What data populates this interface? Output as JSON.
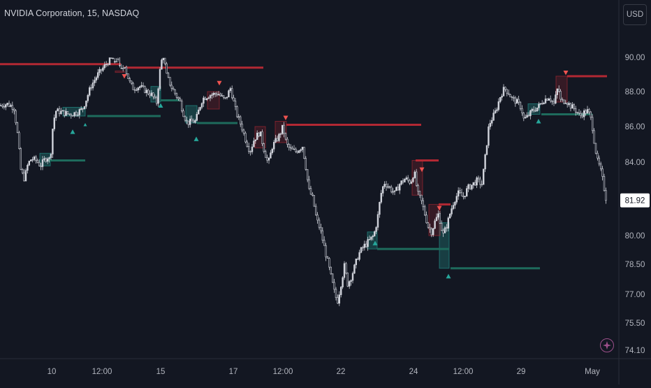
{
  "header": {
    "title": "NVIDIA Corporation, 15, NASDAQ"
  },
  "toolbar": {
    "currency_label": "USD",
    "settings_icon": "compass-icon"
  },
  "colors": {
    "background": "#131722",
    "candle": "#d1d4dc",
    "bearish_level": "#b22833",
    "bullish_level": "#1e6b5c",
    "bullish_box": "#26a69a",
    "bearish_box": "#b22833",
    "price_label_bg": "#ffffff",
    "axis_text": "#b2b5be"
  },
  "chart_data": {
    "type": "candlestick",
    "title": "NVIDIA Corporation, 15, NASDAQ",
    "xlabel": "",
    "ylabel": "",
    "currency": "USD",
    "y_ticks": [
      90.0,
      88.0,
      86.0,
      84.0,
      80.0,
      78.5,
      77.0,
      75.5,
      74.1
    ],
    "y_range": [
      73.6,
      91.5
    ],
    "last_price": 81.92,
    "x_ticks": [
      "10",
      "12:00",
      "15",
      "17",
      "12:00",
      "22",
      "24",
      "12:00",
      "29",
      "May"
    ],
    "price_path": [
      [
        0,
        87.2
      ],
      [
        10,
        87.3
      ],
      [
        20,
        87.1
      ],
      [
        25,
        85.6
      ],
      [
        30,
        83.5
      ],
      [
        35,
        83.1
      ],
      [
        40,
        83.9
      ],
      [
        45,
        84.2
      ],
      [
        52,
        84.1
      ],
      [
        58,
        83.8
      ],
      [
        63,
        84.1
      ],
      [
        68,
        84.3
      ],
      [
        72,
        84.1
      ],
      [
        76,
        86.2
      ],
      [
        80,
        86.9
      ],
      [
        90,
        86.8
      ],
      [
        100,
        86.7
      ],
      [
        110,
        86.8
      ],
      [
        118,
        87.0
      ],
      [
        124,
        87.6
      ],
      [
        130,
        88.3
      ],
      [
        140,
        89.0
      ],
      [
        150,
        89.5
      ],
      [
        160,
        90.0
      ],
      [
        170,
        90.2
      ],
      [
        176,
        90.7
      ],
      [
        179,
        89.4
      ],
      [
        185,
        88.6
      ],
      [
        190,
        88.2
      ],
      [
        200,
        88.3
      ],
      [
        210,
        88.0
      ],
      [
        218,
        87.8
      ],
      [
        224,
        87.3
      ],
      [
        230,
        89.6
      ],
      [
        234,
        90.2
      ],
      [
        238,
        89.0
      ],
      [
        245,
        88.3
      ],
      [
        252,
        87.8
      ],
      [
        258,
        87.4
      ],
      [
        262,
        86.8
      ],
      [
        268,
        86.2
      ],
      [
        275,
        86.3
      ],
      [
        280,
        86.3
      ],
      [
        285,
        87.0
      ],
      [
        290,
        87.6
      ],
      [
        300,
        87.8
      ],
      [
        312,
        87.9
      ],
      [
        322,
        87.5
      ],
      [
        330,
        88.2
      ],
      [
        338,
        86.8
      ],
      [
        346,
        86.0
      ],
      [
        352,
        85.2
      ],
      [
        358,
        84.6
      ],
      [
        364,
        85.3
      ],
      [
        372,
        85.7
      ],
      [
        378,
        84.7
      ],
      [
        384,
        83.9
      ],
      [
        390,
        84.9
      ],
      [
        395,
        85.2
      ],
      [
        400,
        85.5
      ],
      [
        405,
        86.0
      ],
      [
        410,
        85.0
      ],
      [
        416,
        84.7
      ],
      [
        424,
        84.6
      ],
      [
        433,
        84.9
      ],
      [
        438,
        83.7
      ],
      [
        442,
        82.5
      ],
      [
        448,
        82.0
      ],
      [
        453,
        80.9
      ],
      [
        458,
        80.4
      ],
      [
        463,
        79.6
      ],
      [
        468,
        78.8
      ],
      [
        473,
        78.0
      ],
      [
        478,
        77.2
      ],
      [
        483,
        76.6
      ],
      [
        488,
        77.5
      ],
      [
        493,
        78.4
      ],
      [
        498,
        77.5
      ],
      [
        503,
        77.9
      ],
      [
        508,
        78.4
      ],
      [
        513,
        79.0
      ],
      [
        520,
        79.4
      ],
      [
        528,
        79.7
      ],
      [
        535,
        80.0
      ],
      [
        540,
        80.8
      ],
      [
        545,
        82.2
      ],
      [
        550,
        82.9
      ],
      [
        558,
        82.6
      ],
      [
        565,
        82.3
      ],
      [
        572,
        82.8
      ],
      [
        580,
        83.1
      ],
      [
        588,
        82.9
      ],
      [
        593,
        83.5
      ],
      [
        598,
        82.3
      ],
      [
        603,
        81.9
      ],
      [
        608,
        81.2
      ],
      [
        613,
        80.5
      ],
      [
        618,
        80.2
      ],
      [
        622,
        80.7
      ],
      [
        628,
        81.2
      ],
      [
        634,
        80.0
      ],
      [
        640,
        80.6
      ],
      [
        645,
        81.3
      ],
      [
        650,
        81.9
      ],
      [
        656,
        82.3
      ],
      [
        663,
        82.1
      ],
      [
        670,
        82.6
      ],
      [
        677,
        82.8
      ],
      [
        683,
        83.0
      ],
      [
        690,
        82.8
      ],
      [
        695,
        84.4
      ],
      [
        700,
        86.1
      ],
      [
        705,
        86.5
      ],
      [
        710,
        86.9
      ],
      [
        716,
        87.7
      ],
      [
        722,
        88.2
      ],
      [
        727,
        88.0
      ],
      [
        733,
        87.6
      ],
      [
        740,
        87.4
      ],
      [
        746,
        87.1
      ],
      [
        750,
        86.4
      ],
      [
        756,
        86.6
      ],
      [
        762,
        86.9
      ],
      [
        770,
        87.1
      ],
      [
        778,
        87.5
      ],
      [
        786,
        87.7
      ],
      [
        793,
        87.3
      ],
      [
        799,
        88.3
      ],
      [
        803,
        87.4
      ],
      [
        810,
        87.5
      ],
      [
        816,
        87.2
      ],
      [
        823,
        87.0
      ],
      [
        830,
        86.6
      ],
      [
        836,
        86.8
      ],
      [
        842,
        86.9
      ],
      [
        847,
        86.3
      ],
      [
        851,
        85.1
      ],
      [
        855,
        84.1
      ],
      [
        859,
        83.7
      ],
      [
        863,
        83.0
      ],
      [
        868,
        81.92
      ]
    ],
    "bearish_levels": [
      {
        "x_start": 0,
        "x_end": 173,
        "price": 90.4
      },
      {
        "x_start": 178,
        "x_end": 377,
        "price": 90.6
      },
      {
        "x_start": 410,
        "x_end": 603,
        "price": 86.1
      },
      {
        "x_start": 595,
        "x_end": 628,
        "price": 84.1
      },
      {
        "x_start": 628,
        "x_end": 645,
        "price": 81.7
      },
      {
        "x_start": 812,
        "x_end": 869,
        "price": 88.9
      }
    ],
    "bullish_levels": [
      {
        "x_start": 68,
        "x_end": 122,
        "price": 84.1
      },
      {
        "x_start": 125,
        "x_end": 230,
        "price": 86.6
      },
      {
        "x_start": 230,
        "x_end": 258,
        "price": 87.5
      },
      {
        "x_start": 282,
        "x_end": 340,
        "price": 86.2
      },
      {
        "x_start": 540,
        "x_end": 643,
        "price": 79.3
      },
      {
        "x_start": 645,
        "x_end": 773,
        "price": 78.3
      },
      {
        "x_start": 775,
        "x_end": 848,
        "price": 86.7
      }
    ],
    "bullish_boxes": [
      {
        "x1": 57,
        "x2": 72,
        "top": 84.5,
        "bottom": 83.8
      },
      {
        "x1": 90,
        "x2": 122,
        "top": 87.1,
        "bottom": 86.6
      },
      {
        "x1": 216,
        "x2": 230,
        "top": 88.3,
        "bottom": 87.4
      },
      {
        "x1": 266,
        "x2": 282,
        "top": 87.2,
        "bottom": 86.2
      },
      {
        "x1": 526,
        "x2": 540,
        "top": 80.2,
        "bottom": 79.3
      },
      {
        "x1": 629,
        "x2": 643,
        "top": 80.7,
        "bottom": 78.3
      },
      {
        "x1": 756,
        "x2": 773,
        "top": 87.3,
        "bottom": 86.7
      }
    ],
    "bearish_boxes": [
      {
        "x1": 165,
        "x2": 178,
        "top": 90.8,
        "bottom": 90.3
      },
      {
        "x1": 297,
        "x2": 314,
        "top": 88.0,
        "bottom": 87.0
      },
      {
        "x1": 365,
        "x2": 380,
        "top": 86.0,
        "bottom": 84.8
      },
      {
        "x1": 394,
        "x2": 410,
        "top": 86.3,
        "bottom": 85.1
      },
      {
        "x1": 590,
        "x2": 605,
        "top": 84.1,
        "bottom": 82.2
      },
      {
        "x1": 614,
        "x2": 630,
        "top": 81.7,
        "bottom": 80.0
      },
      {
        "x1": 796,
        "x2": 812,
        "top": 88.9,
        "bottom": 87.4
      }
    ],
    "bullish_arrows": [
      {
        "x": 104,
        "price": 85.7
      },
      {
        "x": 230,
        "price": 87.2
      },
      {
        "x": 281,
        "price": 85.3
      },
      {
        "x": 537,
        "price": 79.6
      },
      {
        "x": 642,
        "price": 77.9
      },
      {
        "x": 771,
        "price": 86.3
      }
    ],
    "bearish_arrows": [
      {
        "x": 178,
        "price": 91.1
      },
      {
        "x": 314,
        "price": 88.5
      },
      {
        "x": 409,
        "price": 86.5
      },
      {
        "x": 604,
        "price": 83.6
      },
      {
        "x": 629,
        "price": 81.5
      },
      {
        "x": 810,
        "price": 89.1
      }
    ],
    "small_bullish_marker": {
      "x": 122,
      "price": 86.1
    }
  }
}
